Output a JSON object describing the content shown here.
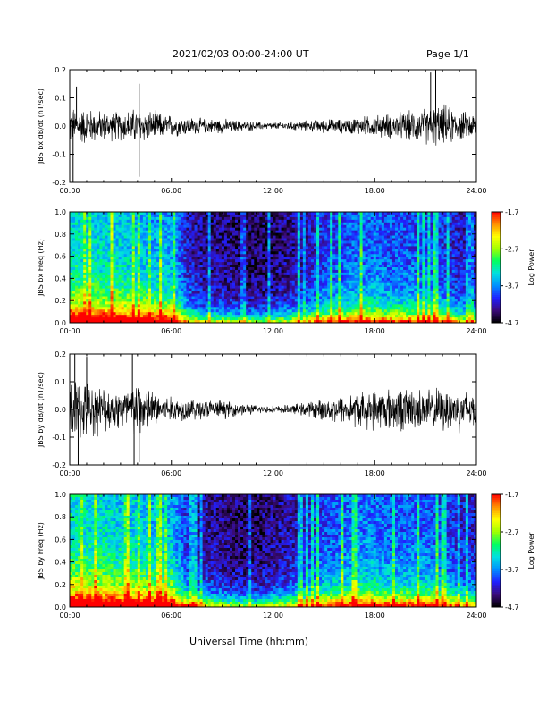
{
  "header": {
    "date_range": "2021/02/03  00:00-24:00 UT",
    "page": "Page 1/1"
  },
  "footer": {
    "xlabel": "Universal Time (hh:mm)"
  },
  "colorbar": {
    "label": "Log Power",
    "ticks": [
      "-1.7",
      "-2.7",
      "-3.7",
      "-4.7"
    ],
    "range": [
      -4.7,
      -1.7
    ],
    "colors": [
      "#000000",
      "#3b0b7a",
      "#2020ff",
      "#0090ff",
      "#00e0e0",
      "#00ff60",
      "#a0ff00",
      "#ffff00",
      "#ff9000",
      "#ff0000"
    ]
  },
  "chart_data": [
    {
      "type": "line",
      "ylabel": "JBS bx dB/dt (nT/sec)",
      "xlim": [
        "00:00",
        "24:00"
      ],
      "ylim": [
        -0.2,
        0.2
      ],
      "x_ticks": [
        "00:00",
        "06:00",
        "12:00",
        "18:00",
        "24:00"
      ],
      "y_ticks": [
        "0.2",
        "0.1",
        "0.0",
        "-0.1",
        "-0.2"
      ],
      "envelope": {
        "x_hours": [
          0,
          1,
          2,
          3,
          4,
          5,
          6,
          7,
          8,
          9,
          10,
          11,
          12,
          13,
          14,
          15,
          16,
          17,
          18,
          19,
          20,
          21,
          22,
          23,
          24
        ],
        "amplitude": [
          0.05,
          0.05,
          0.04,
          0.04,
          0.05,
          0.04,
          0.03,
          0.025,
          0.02,
          0.02,
          0.015,
          0.012,
          0.01,
          0.012,
          0.015,
          0.018,
          0.02,
          0.025,
          0.03,
          0.035,
          0.04,
          0.05,
          0.06,
          0.04,
          0.035
        ]
      },
      "peaks": [
        {
          "hour": 0.2,
          "value": -0.2
        },
        {
          "hour": 0.4,
          "value": 0.14
        },
        {
          "hour": 4.1,
          "value": 0.15
        },
        {
          "hour": 4.1,
          "value": -0.18
        },
        {
          "hour": 21.3,
          "value": 0.19
        },
        {
          "hour": 21.6,
          "value": 0.2
        }
      ]
    },
    {
      "type": "heatmap",
      "ylabel": "JBS bx Freq (Hz)",
      "xlim": [
        "00:00",
        "24:00"
      ],
      "ylim": [
        0.0,
        1.0
      ],
      "x_ticks": [
        "00:00",
        "06:00",
        "12:00",
        "18:00",
        "24:00"
      ],
      "y_ticks": [
        "1.0",
        "0.8",
        "0.6",
        "0.4",
        "0.2",
        "0.0"
      ],
      "activity_by_hour": [
        0.9,
        0.9,
        0.85,
        0.85,
        0.8,
        0.75,
        0.75,
        0.4,
        0.3,
        0.3,
        0.25,
        0.22,
        0.25,
        0.3,
        0.4,
        0.5,
        0.55,
        0.6,
        0.6,
        0.55,
        0.55,
        0.55,
        0.5,
        0.4,
        0.35
      ]
    },
    {
      "type": "line",
      "ylabel": "JBS by dB/dt (nT/sec)",
      "xlim": [
        "00:00",
        "24:00"
      ],
      "ylim": [
        -0.2,
        0.2
      ],
      "x_ticks": [
        "00:00",
        "06:00",
        "12:00",
        "18:00",
        "24:00"
      ],
      "y_ticks": [
        "0.2",
        "0.1",
        "0.0",
        "-0.1",
        "-0.2"
      ],
      "envelope": {
        "x_hours": [
          0,
          1,
          2,
          3,
          4,
          5,
          6,
          7,
          8,
          9,
          10,
          11,
          12,
          13,
          14,
          15,
          16,
          17,
          18,
          19,
          20,
          21,
          22,
          23,
          24
        ],
        "amplitude": [
          0.09,
          0.08,
          0.06,
          0.06,
          0.08,
          0.05,
          0.035,
          0.03,
          0.028,
          0.025,
          0.018,
          0.012,
          0.01,
          0.012,
          0.02,
          0.03,
          0.04,
          0.05,
          0.055,
          0.06,
          0.06,
          0.055,
          0.06,
          0.06,
          0.05
        ]
      },
      "peaks": [
        {
          "hour": 0.3,
          "value": 0.2
        },
        {
          "hour": 0.5,
          "value": -0.2
        },
        {
          "hour": 1.0,
          "value": 0.19
        },
        {
          "hour": 3.7,
          "value": 0.2
        },
        {
          "hour": 3.8,
          "value": -0.2
        },
        {
          "hour": 4.1,
          "value": -0.19
        }
      ]
    },
    {
      "type": "heatmap",
      "ylabel": "JBS by Freq (Hz)",
      "xlim": [
        "00:00",
        "24:00"
      ],
      "ylim": [
        0.0,
        1.0
      ],
      "x_ticks": [
        "00:00",
        "06:00",
        "12:00",
        "18:00",
        "24:00"
      ],
      "y_ticks": [
        "1.0",
        "0.8",
        "0.6",
        "0.4",
        "0.2",
        "0.0"
      ],
      "activity_by_hour": [
        0.95,
        0.9,
        0.9,
        0.85,
        0.85,
        0.8,
        0.8,
        0.45,
        0.35,
        0.3,
        0.25,
        0.25,
        0.3,
        0.35,
        0.45,
        0.55,
        0.6,
        0.65,
        0.65,
        0.6,
        0.6,
        0.6,
        0.55,
        0.45,
        0.4
      ]
    }
  ]
}
